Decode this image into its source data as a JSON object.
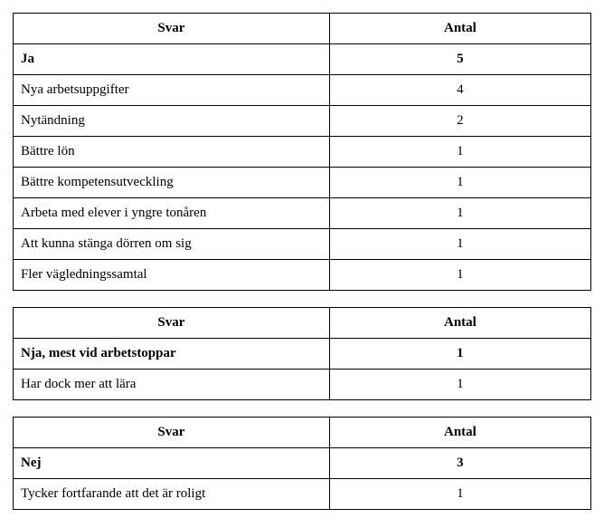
{
  "tables": [
    {
      "header_svar": "Svar",
      "header_antal": "Antal",
      "rows": [
        {
          "label": "Ja",
          "value": "5",
          "bold": true
        },
        {
          "label": "Nya arbetsuppgifter",
          "value": "4",
          "bold": false
        },
        {
          "label": "Nytändning",
          "value": "2",
          "bold": false
        },
        {
          "label": "Bättre lön",
          "value": "1",
          "bold": false
        },
        {
          "label": "Bättre kompetensutveckling",
          "value": "1",
          "bold": false
        },
        {
          "label": "Arbeta med elever i yngre tonåren",
          "value": "1",
          "bold": false
        },
        {
          "label": "Att kunna stänga dörren om sig",
          "value": "1",
          "bold": false
        },
        {
          "label": "Fler vägledningssamtal",
          "value": "1",
          "bold": false
        }
      ]
    },
    {
      "header_svar": "Svar",
      "header_antal": "Antal",
      "rows": [
        {
          "label": "Nja, mest vid arbetstoppar",
          "value": "1",
          "bold": true
        },
        {
          "label": "Har dock mer att lära",
          "value": "1",
          "bold": false
        }
      ]
    },
    {
      "header_svar": "Svar",
      "header_antal": "Antal",
      "rows": [
        {
          "label": "Nej",
          "value": "3",
          "bold": true
        },
        {
          "label": "Tycker fortfarande att det är roligt",
          "value": "1",
          "bold": false
        }
      ]
    }
  ]
}
